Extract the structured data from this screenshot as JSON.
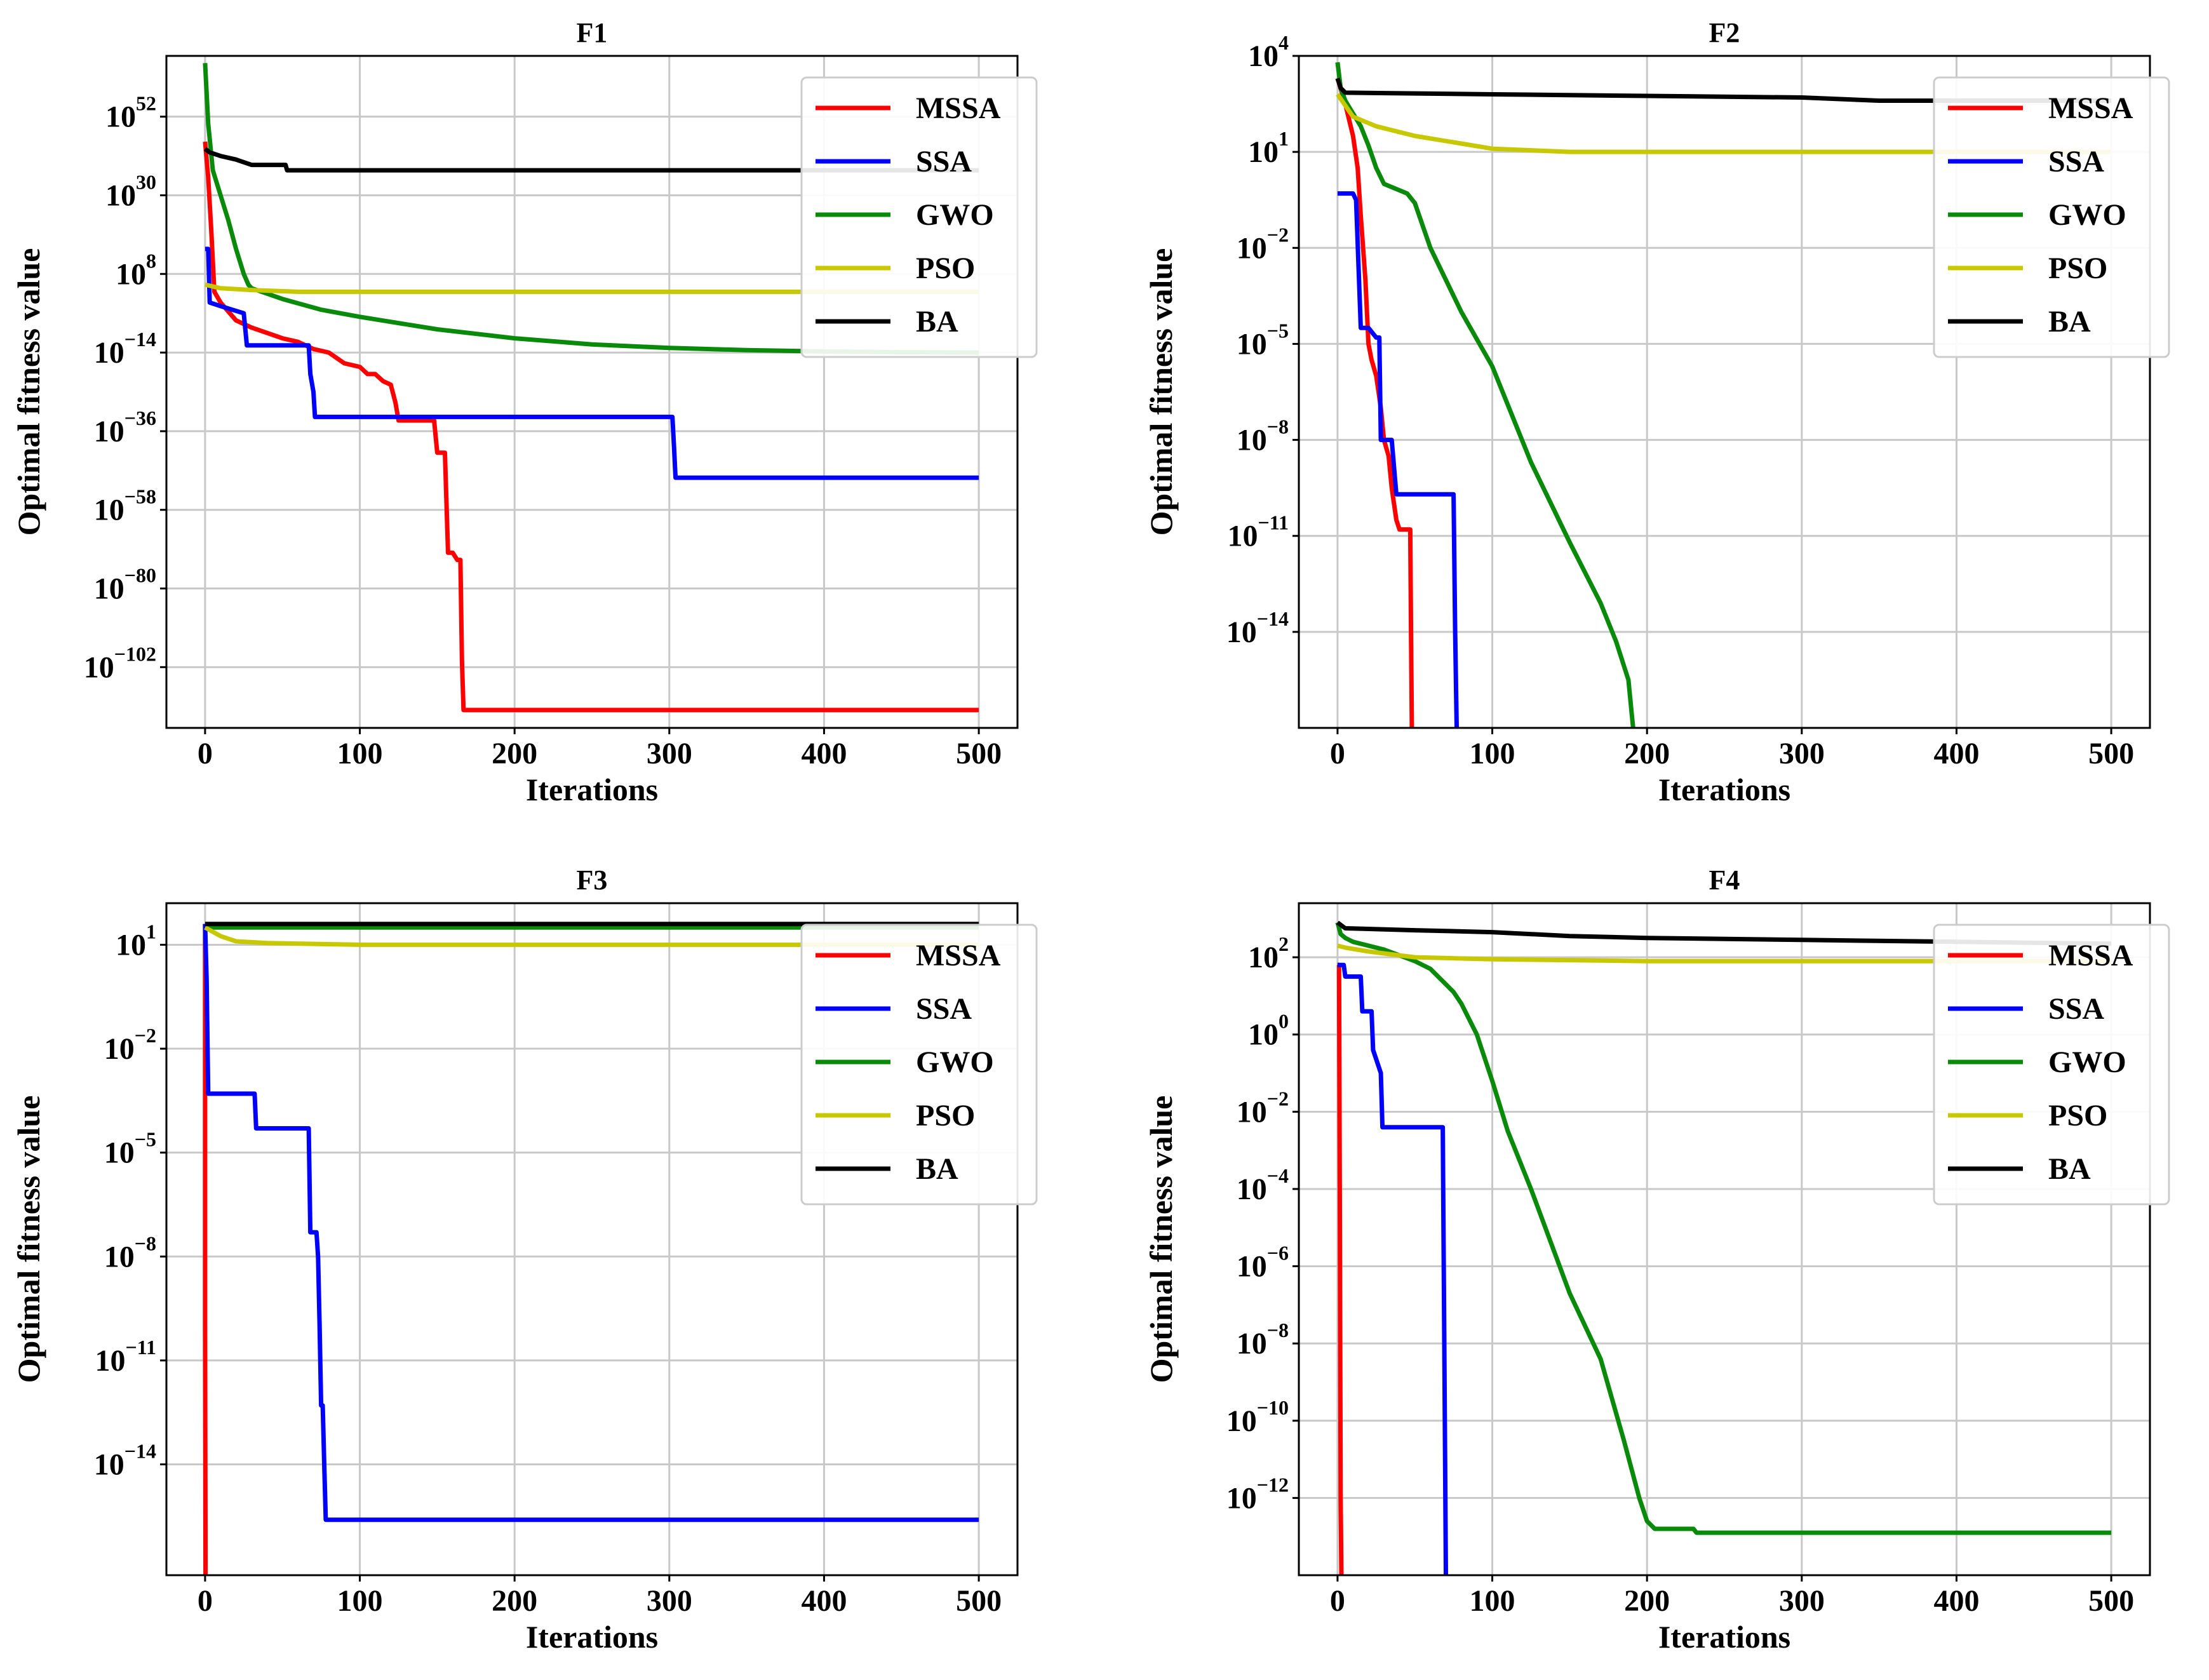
{
  "figure": {
    "colors": {
      "MSSA": "#ff0000",
      "SSA": "#0000ff",
      "GWO": "#0a8a0a",
      "PSO": "#c8c800",
      "BA": "#000000"
    }
  },
  "chart_data": [
    {
      "type": "line",
      "title": "F1",
      "xlabel": "Iterations",
      "ylabel": "Optimal fitness value",
      "yscale": "log",
      "xlim": [
        -25,
        525
      ],
      "ylim_log10": [
        -119,
        69
      ],
      "xticks": [
        0,
        100,
        200,
        300,
        400,
        500
      ],
      "yticks": [
        {
          "exp": 52,
          "label": "52"
        },
        {
          "exp": 30,
          "label": "30"
        },
        {
          "exp": 8,
          "label": "8"
        },
        {
          "exp": -14,
          "label": "−14"
        },
        {
          "exp": -36,
          "label": "−36"
        },
        {
          "exp": -58,
          "label": "−58"
        },
        {
          "exp": -80,
          "label": "−80"
        },
        {
          "exp": -102,
          "label": "−102"
        }
      ],
      "grid": true,
      "legend": {
        "position": "top-right",
        "entries": [
          "MSSA",
          "SSA",
          "GWO",
          "PSO",
          "BA"
        ]
      },
      "series": [
        {
          "name": "MSSA",
          "x": [
            0,
            2,
            4,
            6,
            10,
            20,
            30,
            50,
            60,
            70,
            80,
            90,
            100,
            105,
            110,
            115,
            120,
            123,
            125,
            148,
            150,
            155,
            157,
            160,
            163,
            165,
            166,
            167,
            500
          ],
          "y_log10": [
            45,
            35,
            20,
            3,
            0,
            -5,
            -7,
            -10,
            -11,
            -13,
            -14,
            -17,
            -18,
            -20,
            -20,
            -22,
            -23,
            -28,
            -33,
            -33,
            -42,
            -42,
            -70,
            -70,
            -72,
            -72,
            -100,
            -114,
            -114
          ]
        },
        {
          "name": "SSA",
          "x": [
            0,
            2,
            3,
            10,
            25,
            27,
            67,
            68,
            70,
            71,
            302,
            303,
            304,
            500
          ],
          "y_log10": [
            15,
            15,
            0,
            -1,
            -3,
            -12,
            -12,
            -20,
            -25,
            -32,
            -32,
            -40,
            -49,
            -49
          ]
        },
        {
          "name": "GWO",
          "x": [
            0,
            2,
            5,
            10,
            15,
            20,
            25,
            28,
            30,
            50,
            75,
            100,
            150,
            200,
            250,
            300,
            350,
            400,
            450,
            500
          ],
          "y_log10": [
            67,
            50,
            37,
            30,
            23,
            15,
            8,
            5,
            4,
            1,
            -2,
            -4,
            -7.5,
            -10,
            -11.7,
            -12.7,
            -13.3,
            -13.7,
            -13.9,
            -14
          ]
        },
        {
          "name": "PSO",
          "x": [
            0,
            10,
            30,
            60,
            100,
            500
          ],
          "y_log10": [
            5,
            4,
            3.5,
            3,
            3,
            3
          ]
        },
        {
          "name": "BA",
          "x": [
            0,
            3,
            10,
            20,
            30,
            40,
            50,
            52,
            53,
            500
          ],
          "y_log10": [
            43,
            42,
            41,
            40,
            38.5,
            38.5,
            38.5,
            38.5,
            37,
            37
          ]
        }
      ]
    },
    {
      "type": "line",
      "title": "F2",
      "xlabel": "Iterations",
      "ylabel": "Optimal fitness value",
      "yscale": "log",
      "xlim": [
        -25,
        525
      ],
      "ylim_log10": [
        -17,
        4
      ],
      "xticks": [
        0,
        100,
        200,
        300,
        400,
        500
      ],
      "yticks": [
        {
          "exp": 4,
          "label": "4"
        },
        {
          "exp": 1,
          "label": "1"
        },
        {
          "exp": -2,
          "label": "−2"
        },
        {
          "exp": -5,
          "label": "−5"
        },
        {
          "exp": -8,
          "label": "−8"
        },
        {
          "exp": -11,
          "label": "−11"
        },
        {
          "exp": -14,
          "label": "−14"
        }
      ],
      "grid": true,
      "legend": {
        "position": "top-right",
        "entries": [
          "MSSA",
          "SSA",
          "GWO",
          "PSO",
          "BA"
        ]
      },
      "series": [
        {
          "name": "MSSA",
          "x": [
            0,
            5,
            10,
            13,
            15,
            18,
            20,
            22,
            25,
            28,
            30,
            33,
            35,
            38,
            40,
            42,
            45,
            47,
            47.5,
            48
          ],
          "y_log10": [
            3.3,
            2.5,
            1.5,
            0.5,
            -1,
            -3,
            -5,
            -5.5,
            -6,
            -7,
            -8,
            -8.5,
            -9.5,
            -10.5,
            -10.8,
            -10.8,
            -10.8,
            -10.8,
            -14,
            -17
          ]
        },
        {
          "name": "SSA",
          "x": [
            0,
            10,
            12,
            15,
            20,
            25,
            27,
            28,
            35,
            38,
            40,
            45,
            75,
            76,
            77
          ],
          "y_log10": [
            -0.3,
            -0.3,
            -0.5,
            -4.5,
            -4.5,
            -4.8,
            -4.8,
            -8,
            -8,
            -9.7,
            -9.7,
            -9.7,
            -9.7,
            -14,
            -17
          ]
        },
        {
          "name": "GWO",
          "x": [
            0,
            2,
            5,
            10,
            15,
            20,
            25,
            30,
            40,
            45,
            50,
            60,
            80,
            100,
            125,
            150,
            170,
            180,
            188,
            190,
            191
          ],
          "y_log10": [
            3.8,
            3,
            2.6,
            2.2,
            1.8,
            1.2,
            0.5,
            0,
            -0.2,
            -0.3,
            -0.6,
            -2,
            -4,
            -5.7,
            -8.7,
            -11.2,
            -13.1,
            -14.3,
            -15.5,
            -16.5,
            -17
          ]
        },
        {
          "name": "PSO",
          "x": [
            0,
            10,
            25,
            50,
            75,
            100,
            150,
            200,
            300,
            500
          ],
          "y_log10": [
            2.8,
            2.1,
            1.8,
            1.5,
            1.3,
            1.1,
            1.0,
            1.0,
            1.0,
            1.0
          ]
        },
        {
          "name": "BA",
          "x": [
            0,
            2,
            5,
            100,
            200,
            300,
            350,
            400,
            500
          ],
          "y_log10": [
            3.3,
            3.0,
            2.85,
            2.8,
            2.75,
            2.7,
            2.6,
            2.6,
            2.6
          ]
        }
      ]
    },
    {
      "type": "line",
      "title": "F3",
      "xlabel": "Iterations",
      "ylabel": "Optimal fitness value",
      "yscale": "log",
      "xlim": [
        -25,
        525
      ],
      "ylim_log10": [
        -17.2,
        2.2
      ],
      "xticks": [
        0,
        100,
        200,
        300,
        400,
        500
      ],
      "yticks": [
        {
          "exp": 1,
          "label": "1"
        },
        {
          "exp": -2,
          "label": "−2"
        },
        {
          "exp": -5,
          "label": "−5"
        },
        {
          "exp": -8,
          "label": "−8"
        },
        {
          "exp": -11,
          "label": "−11"
        },
        {
          "exp": -14,
          "label": "−14"
        }
      ],
      "grid": true,
      "legend": {
        "position": "top-right",
        "entries": [
          "MSSA",
          "SSA",
          "GWO",
          "PSO",
          "BA"
        ]
      },
      "series": [
        {
          "name": "MSSA",
          "x": [
            0,
            0,
            0.3
          ],
          "y_log10": [
            1.6,
            -10,
            -17.2
          ]
        },
        {
          "name": "SSA",
          "x": [
            0,
            1,
            2,
            32,
            33,
            67,
            68,
            72,
            73,
            74,
            75,
            76,
            77,
            78,
            80,
            500
          ],
          "y_log10": [
            1.6,
            0,
            -3.3,
            -3.3,
            -4.3,
            -4.3,
            -7.3,
            -7.3,
            -8,
            -10,
            -12.3,
            -12.3,
            -14,
            -15.6,
            -15.6,
            -15.6
          ]
        },
        {
          "name": "GWO",
          "x": [
            0,
            500
          ],
          "y_log10": [
            1.5,
            1.5
          ]
        },
        {
          "name": "PSO",
          "x": [
            0,
            10,
            20,
            40,
            100,
            500
          ],
          "y_log10": [
            1.5,
            1.25,
            1.1,
            1.05,
            1.0,
            1.0
          ]
        },
        {
          "name": "BA",
          "x": [
            0,
            500
          ],
          "y_log10": [
            1.6,
            1.6
          ]
        }
      ]
    },
    {
      "type": "line",
      "title": "F4",
      "xlabel": "Iterations",
      "ylabel": "Optimal fitness value",
      "yscale": "log",
      "xlim": [
        -25,
        525
      ],
      "ylim_log10": [
        -14,
        3.4
      ],
      "xticks": [
        0,
        100,
        200,
        300,
        400,
        500
      ],
      "yticks": [
        {
          "exp": 2,
          "label": "2"
        },
        {
          "exp": 0,
          "label": "0"
        },
        {
          "exp": -2,
          "label": "−2"
        },
        {
          "exp": -4,
          "label": "−4"
        },
        {
          "exp": -6,
          "label": "−6"
        },
        {
          "exp": -8,
          "label": "−8"
        },
        {
          "exp": -10,
          "label": "−10"
        },
        {
          "exp": -12,
          "label": "−12"
        }
      ],
      "grid": true,
      "legend": {
        "position": "top-right",
        "entries": [
          "MSSA",
          "SSA",
          "GWO",
          "PSO",
          "BA"
        ]
      },
      "series": [
        {
          "name": "MSSA",
          "x": [
            0,
            1,
            1.5,
            2,
            2.5
          ],
          "y_log10": [
            1.8,
            1.8,
            -5,
            -12,
            -14
          ]
        },
        {
          "name": "SSA",
          "x": [
            0,
            4,
            5,
            15,
            16,
            22,
            23,
            28,
            29,
            68,
            69,
            70
          ],
          "y_log10": [
            1.8,
            1.8,
            1.5,
            1.5,
            0.6,
            0.6,
            -0.4,
            -1,
            -2.4,
            -2.4,
            -8,
            -14
          ]
        },
        {
          "name": "GWO",
          "x": [
            0,
            2,
            5,
            10,
            20,
            30,
            50,
            60,
            70,
            75,
            80,
            90,
            100,
            110,
            125,
            150,
            170,
            185,
            195,
            200,
            205,
            230,
            232,
            300,
            400,
            500
          ],
          "y_log10": [
            2.9,
            2.6,
            2.5,
            2.4,
            2.3,
            2.2,
            1.9,
            1.7,
            1.3,
            1.1,
            0.8,
            0.0,
            -1.2,
            -2.5,
            -4,
            -6.7,
            -8.4,
            -10.5,
            -12,
            -12.6,
            -12.8,
            -12.8,
            -12.9,
            -12.9,
            -12.9,
            -12.9
          ]
        },
        {
          "name": "PSO",
          "x": [
            0,
            5,
            20,
            50,
            100,
            200,
            300,
            500
          ],
          "y_log10": [
            2.3,
            2.25,
            2.15,
            2.0,
            1.95,
            1.9,
            1.9,
            1.9
          ]
        },
        {
          "name": "BA",
          "x": [
            0,
            5,
            50,
            100,
            150,
            200,
            300,
            400,
            500
          ],
          "y_log10": [
            2.9,
            2.75,
            2.7,
            2.65,
            2.55,
            2.5,
            2.45,
            2.4,
            2.35
          ]
        }
      ]
    }
  ]
}
